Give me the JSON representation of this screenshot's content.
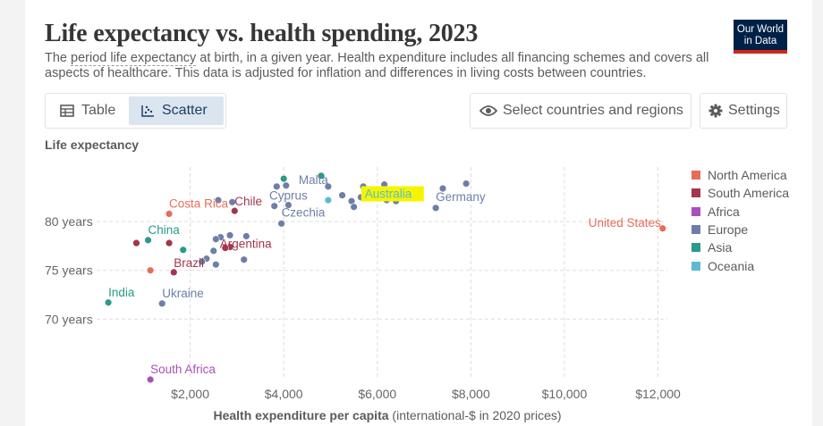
{
  "header": {
    "title": "Life expectancy vs. health spending, 2023",
    "subtitle_pre": "The ",
    "subtitle_link": "period life expectancy",
    "subtitle_post": " at birth, in a given year. Health expenditure includes all financing schemes and covers all aspects of healthcare. This data is adjusted for inflation and differences in living costs between countries.",
    "logo_line1": "Our World",
    "logo_line2": "in Data"
  },
  "controls": {
    "tab_table": "Table",
    "tab_scatter": "Scatter",
    "select_countries": "Select countries and regions",
    "settings": "Settings"
  },
  "colors": {
    "North America": "#e56e5a",
    "South America": "#a2354d",
    "Africa": "#a652ba",
    "Europe": "#6d7fa8",
    "Asia": "#2a9a89",
    "Oceania": "#5bbad1"
  },
  "chart_data": {
    "type": "scatter",
    "title": "Life expectancy vs. health spending, 2023",
    "ylabel": "Life expectancy",
    "xlabel_bold": "Health expenditure per capita",
    "xlabel_rest": " (international-$ in 2020 prices)",
    "x_ticks": [
      "$2,000",
      "$4,000",
      "$6,000",
      "$8,000",
      "$10,000",
      "$12,000"
    ],
    "x_tick_values": [
      2000,
      4000,
      6000,
      8000,
      10000,
      12000
    ],
    "y_ticks": [
      "70 years",
      "75 years",
      "80 years"
    ],
    "y_tick_values": [
      70,
      75,
      80
    ],
    "xlim": [
      0,
      12200
    ],
    "ylim": [
      63.8,
      85.6
    ],
    "grid": true,
    "legend_position": "right",
    "legend": [
      "North America",
      "South America",
      "Africa",
      "Europe",
      "Asia",
      "Oceania"
    ],
    "labeled_points": [
      {
        "label": "Malta",
        "x": 4950,
        "y": 83.6,
        "region": "Europe"
      },
      {
        "label": "Australia",
        "x": 6000,
        "y": 82.9,
        "region": "Oceania",
        "highlighted": true
      },
      {
        "label": "Cyprus",
        "x": 4100,
        "y": 81.7,
        "region": "Europe"
      },
      {
        "label": "Chile",
        "x": 2950,
        "y": 81.1,
        "region": "South America"
      },
      {
        "label": "Costa Rica",
        "x": 1550,
        "y": 80.8,
        "region": "North America"
      },
      {
        "label": "Germany",
        "x": 7250,
        "y": 81.4,
        "region": "Europe"
      },
      {
        "label": "Czechia",
        "x": 3950,
        "y": 79.8,
        "region": "Europe"
      },
      {
        "label": "United States",
        "x": 12100,
        "y": 79.3,
        "region": "North America"
      },
      {
        "label": "China",
        "x": 1100,
        "y": 78.1,
        "region": "Asia"
      },
      {
        "label": "Argentina",
        "x": 2750,
        "y": 77.3,
        "region": "South America"
      },
      {
        "label": "Brazil",
        "x": 1650,
        "y": 74.8,
        "region": "South America"
      },
      {
        "label": "India",
        "x": 250,
        "y": 71.7,
        "region": "Asia"
      },
      {
        "label": "Ukraine",
        "x": 1400,
        "y": 71.6,
        "region": "Europe"
      },
      {
        "label": "South Africa",
        "x": 1150,
        "y": 63.8,
        "region": "Africa"
      }
    ],
    "other_points": [
      {
        "x": 4000,
        "y": 84.4,
        "region": "Asia"
      },
      {
        "x": 4800,
        "y": 84.7,
        "region": "Asia"
      },
      {
        "x": 3850,
        "y": 83.6,
        "region": "Europe"
      },
      {
        "x": 4050,
        "y": 83.7,
        "region": "Europe"
      },
      {
        "x": 5700,
        "y": 83.6,
        "region": "Europe"
      },
      {
        "x": 6150,
        "y": 83.8,
        "region": "Europe"
      },
      {
        "x": 7400,
        "y": 83.4,
        "region": "Europe"
      },
      {
        "x": 7900,
        "y": 83.9,
        "region": "Europe"
      },
      {
        "x": 5250,
        "y": 82.7,
        "region": "Europe"
      },
      {
        "x": 5650,
        "y": 82.5,
        "region": "Europe"
      },
      {
        "x": 5450,
        "y": 82.1,
        "region": "Europe"
      },
      {
        "x": 6050,
        "y": 82.4,
        "region": "Europe"
      },
      {
        "x": 6200,
        "y": 82.2,
        "region": "Europe"
      },
      {
        "x": 6400,
        "y": 82.1,
        "region": "Europe"
      },
      {
        "x": 4950,
        "y": 82.2,
        "region": "Oceania"
      },
      {
        "x": 5500,
        "y": 81.5,
        "region": "Europe"
      },
      {
        "x": 3800,
        "y": 81.6,
        "region": "Europe"
      },
      {
        "x": 2600,
        "y": 82.2,
        "region": "Europe"
      },
      {
        "x": 2900,
        "y": 82.0,
        "region": "Europe"
      },
      {
        "x": 2850,
        "y": 78.6,
        "region": "Europe"
      },
      {
        "x": 2650,
        "y": 78.4,
        "region": "Europe"
      },
      {
        "x": 2550,
        "y": 78.2,
        "region": "Europe"
      },
      {
        "x": 3200,
        "y": 78.5,
        "region": "Europe"
      },
      {
        "x": 2500,
        "y": 77.0,
        "region": "Europe"
      },
      {
        "x": 2350,
        "y": 76.2,
        "region": "Europe"
      },
      {
        "x": 2250,
        "y": 75.9,
        "region": "Europe"
      },
      {
        "x": 2550,
        "y": 75.6,
        "region": "Europe"
      },
      {
        "x": 3150,
        "y": 76.1,
        "region": "Europe"
      },
      {
        "x": 1850,
        "y": 77.1,
        "region": "Asia"
      },
      {
        "x": 850,
        "y": 77.8,
        "region": "South America"
      },
      {
        "x": 1550,
        "y": 77.8,
        "region": "South America"
      },
      {
        "x": 2850,
        "y": 77.4,
        "region": "South America"
      },
      {
        "x": 1150,
        "y": 75.0,
        "region": "North America"
      },
      {
        "x": 6050,
        "y": 82.8,
        "region": "North America"
      }
    ]
  }
}
